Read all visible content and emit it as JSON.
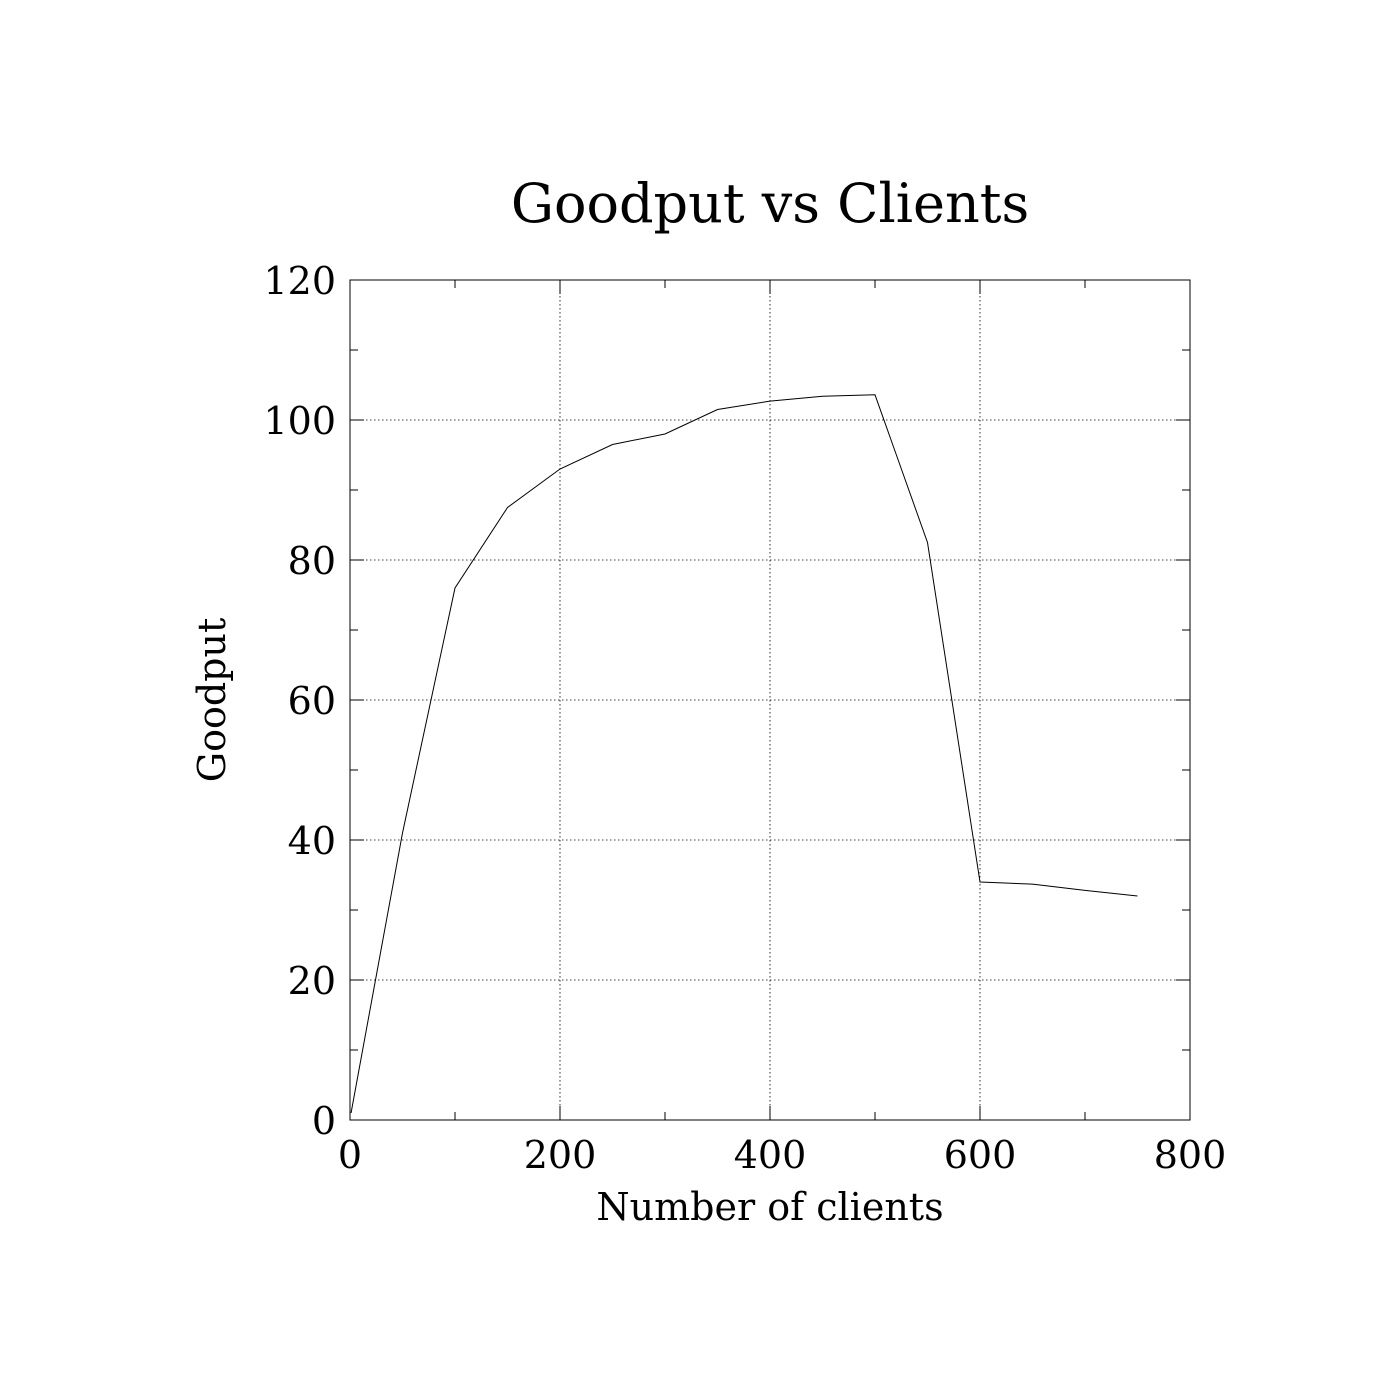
{
  "chart_data": {
    "type": "line",
    "title": "Goodput vs Clients",
    "xlabel": "Number of clients",
    "ylabel": "Goodput",
    "xlim": [
      0,
      800
    ],
    "ylim": [
      0,
      120
    ],
    "x_ticks": [
      0,
      200,
      400,
      600,
      800
    ],
    "y_ticks": [
      0,
      20,
      40,
      60,
      80,
      100,
      120
    ],
    "x_minor_step": 100,
    "y_minor_step": 10,
    "grid": true,
    "series": [
      {
        "x": [
          1,
          50,
          100,
          150,
          200,
          250,
          300,
          350,
          400,
          450,
          500,
          550,
          600,
          650,
          700,
          750
        ],
        "y": [
          1,
          41,
          76,
          87.5,
          93,
          96.5,
          98,
          101.5,
          102.7,
          103.4,
          103.6,
          82.5,
          34,
          33.7,
          32.8,
          32
        ]
      }
    ]
  }
}
